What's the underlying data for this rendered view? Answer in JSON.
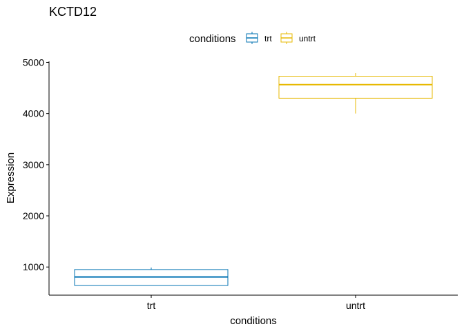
{
  "chart_data": {
    "type": "boxplot",
    "title": "KCTD12",
    "xlabel": "conditions",
    "ylabel": "Expression",
    "ylim": [
      450,
      5020
    ],
    "yticks": [
      1000,
      2000,
      3000,
      4000,
      5000
    ],
    "categories": [
      "trt",
      "untrt"
    ],
    "legend": {
      "title": "conditions",
      "position": "top",
      "entries": [
        "trt",
        "untrt"
      ]
    },
    "grid": false,
    "series": [
      {
        "name": "trt",
        "color": "#0072B2",
        "whisker_low": 640,
        "q1": 640,
        "median": 805,
        "q3": 950,
        "whisker_high": 990
      },
      {
        "name": "untrt",
        "color": "#E7B800",
        "whisker_low": 4000,
        "q1": 4300,
        "median": 4565,
        "q3": 4730,
        "whisker_high": 4790
      }
    ]
  }
}
